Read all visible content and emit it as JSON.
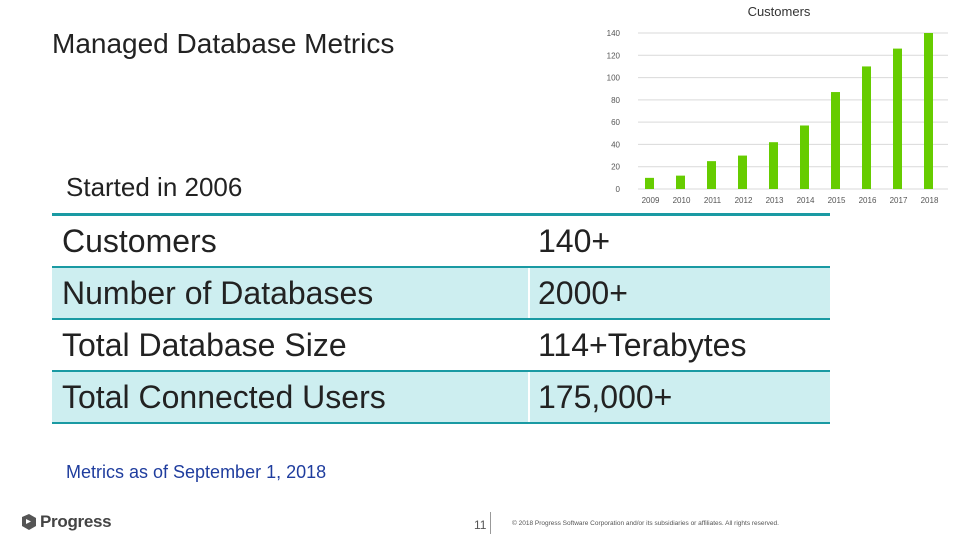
{
  "slide": {
    "title": "Managed Database Metrics",
    "subtitle": "Started in 2006",
    "note": "Metrics as of September 1, 2018",
    "logo_text": "Progress",
    "page_number": "11",
    "copyright": "© 2018 Progress Software Corporation and/or its subsidiaries or affiliates. All rights reserved."
  },
  "metrics": [
    {
      "label": "Customers",
      "value": "140+"
    },
    {
      "label": "Number of Databases",
      "value": "2000+"
    },
    {
      "label": "Total Database Size",
      "value": "114+Terabytes"
    },
    {
      "label": "Total Connected Users",
      "value": "175,000+"
    }
  ],
  "colors": {
    "bar": "#66cc00",
    "accent": "#1a9aa3",
    "row_shade": "#cdeef0",
    "note": "#1f3d9e",
    "logo_mark": "#555555"
  },
  "chart_data": {
    "type": "bar",
    "title": "Customers",
    "categories": [
      "2009",
      "2010",
      "2011",
      "2012",
      "2013",
      "2014",
      "2015",
      "2016",
      "2017",
      "2018"
    ],
    "values": [
      10,
      12,
      25,
      30,
      42,
      57,
      87,
      110,
      126,
      140
    ],
    "ylim": [
      0,
      140
    ],
    "yticks": [
      0,
      20,
      40,
      60,
      80,
      100,
      120,
      140
    ],
    "xlabel": "",
    "ylabel": "",
    "grid": true,
    "legend": "none"
  }
}
